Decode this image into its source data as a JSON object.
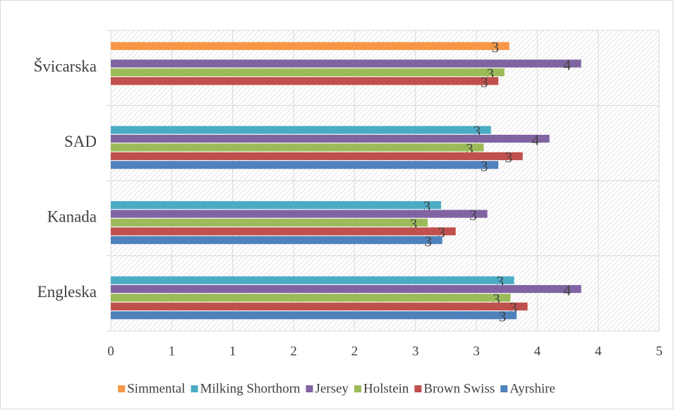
{
  "chart_data": {
    "type": "hbar",
    "categories": [
      "Engleska",
      "Kanada",
      "SAD",
      "Švicarska"
    ],
    "series": [
      {
        "name": "Simmental",
        "color": "#f79646",
        "values": [
          null,
          null,
          null,
          3.27
        ],
        "value_labels": [
          null,
          null,
          null,
          "3"
        ]
      },
      {
        "name": "Milking Shorthorn",
        "color": "#4bacc6",
        "values": [
          3.31,
          2.71,
          3.12,
          null
        ],
        "value_labels": [
          "3",
          "3",
          "3",
          null
        ]
      },
      {
        "name": "Jersey",
        "color": "#8064a2",
        "values": [
          3.86,
          3.09,
          3.6,
          3.86
        ],
        "value_labels": [
          "4",
          "3",
          "4",
          "4"
        ]
      },
      {
        "name": "Holstein",
        "color": "#9bbb59",
        "values": [
          3.28,
          2.6,
          3.06,
          3.23
        ],
        "value_labels": [
          "3",
          "3",
          "3",
          "3"
        ]
      },
      {
        "name": "Brown Swiss",
        "color": "#c0504d",
        "values": [
          3.42,
          2.83,
          3.38,
          3.18
        ],
        "value_labels": [
          "3",
          "3",
          "3",
          "3"
        ]
      },
      {
        "name": "Ayrshire",
        "color": "#4f81bd",
        "values": [
          3.33,
          2.72,
          3.18,
          null
        ],
        "value_labels": [
          "3",
          "3",
          "3",
          null
        ]
      }
    ],
    "xlim": [
      0,
      4.5
    ],
    "xticks": [
      0,
      {
        "value": 0.5,
        "label": "1"
      },
      1,
      {
        "value": 1.5,
        "label": "2"
      },
      2,
      {
        "value": 2.5,
        "label": "3"
      },
      3,
      {
        "value": 3.5,
        "label": "4"
      },
      4,
      {
        "value": 4.5,
        "label": "5"
      }
    ],
    "grid": true,
    "legend": "bottom"
  }
}
